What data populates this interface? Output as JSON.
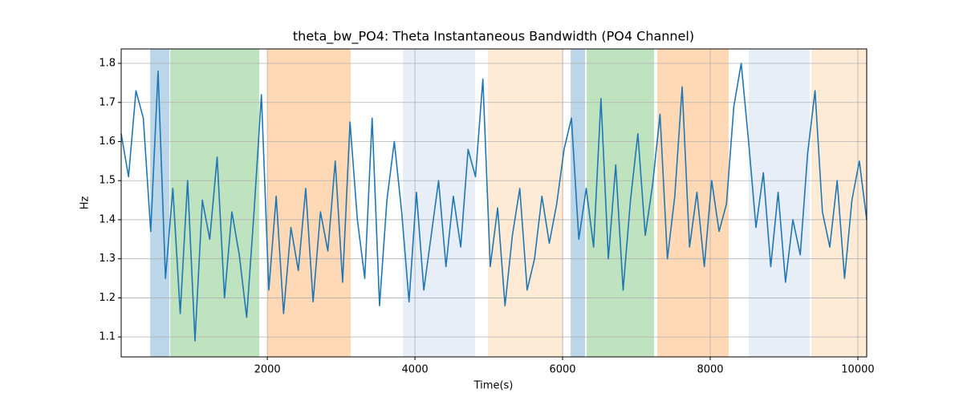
{
  "chart_data": {
    "type": "line",
    "title": "theta_bw_PO4: Theta Instantaneous Bandwidth (PO4 Channel)",
    "x_label": "Time(s)",
    "y_label": "Hz",
    "xlim": [
      20,
      10120
    ],
    "ylim": [
      1.049,
      1.837
    ],
    "xticks": [
      2000,
      4000,
      6000,
      8000,
      10000
    ],
    "yticks": [
      1.1,
      1.2,
      1.3,
      1.4,
      1.5,
      1.6,
      1.7,
      1.8
    ],
    "grid": true,
    "spans": [
      {
        "start": 413,
        "end": 674,
        "color": "#1f77b4"
      },
      {
        "start": 685,
        "end": 1891,
        "color": "#2ca02c"
      },
      {
        "start": 2000,
        "end": 3130,
        "color": "#ff7f0e"
      },
      {
        "start": 3837,
        "end": 4815,
        "color": "#aec7e8"
      },
      {
        "start": 4989,
        "end": 6011,
        "color": "#ffbb78"
      },
      {
        "start": 6109,
        "end": 6304,
        "color": "#1f77b4"
      },
      {
        "start": 6326,
        "end": 7239,
        "color": "#2ca02c"
      },
      {
        "start": 7283,
        "end": 8250,
        "color": "#ff7f0e"
      },
      {
        "start": 8522,
        "end": 9348,
        "color": "#aec7e8"
      },
      {
        "start": 9370,
        "end": 10120,
        "color": "#ffbb78"
      }
    ],
    "x": [
      20,
      120,
      220,
      320,
      420,
      520,
      620,
      720,
      820,
      920,
      1020,
      1120,
      1220,
      1320,
      1420,
      1520,
      1620,
      1720,
      1820,
      1920,
      2020,
      2120,
      2220,
      2320,
      2420,
      2520,
      2620,
      2720,
      2820,
      2920,
      3020,
      3120,
      3220,
      3320,
      3420,
      3520,
      3620,
      3720,
      3820,
      3920,
      4020,
      4120,
      4220,
      4320,
      4420,
      4520,
      4620,
      4720,
      4820,
      4920,
      5020,
      5120,
      5220,
      5320,
      5420,
      5520,
      5620,
      5720,
      5820,
      5920,
      6020,
      6120,
      6220,
      6320,
      6420,
      6520,
      6620,
      6720,
      6820,
      6920,
      7020,
      7120,
      7220,
      7320,
      7420,
      7520,
      7620,
      7720,
      7820,
      7920,
      8020,
      8120,
      8220,
      8320,
      8420,
      8520,
      8620,
      8720,
      8820,
      8920,
      9020,
      9120,
      9220,
      9320,
      9420,
      9520,
      9620,
      9720,
      9820,
      9920,
      10020,
      10120
    ],
    "series": [
      {
        "color": "#1f77b4",
        "values": [
          1.62,
          1.51,
          1.73,
          1.66,
          1.37,
          1.78,
          1.25,
          1.48,
          1.16,
          1.5,
          1.09,
          1.45,
          1.35,
          1.56,
          1.2,
          1.42,
          1.31,
          1.15,
          1.42,
          1.72,
          1.22,
          1.46,
          1.16,
          1.38,
          1.27,
          1.48,
          1.19,
          1.42,
          1.32,
          1.55,
          1.24,
          1.65,
          1.4,
          1.25,
          1.66,
          1.18,
          1.45,
          1.6,
          1.42,
          1.19,
          1.47,
          1.22,
          1.36,
          1.5,
          1.28,
          1.46,
          1.33,
          1.58,
          1.51,
          1.76,
          1.28,
          1.43,
          1.18,
          1.36,
          1.48,
          1.22,
          1.3,
          1.46,
          1.34,
          1.44,
          1.58,
          1.66,
          1.35,
          1.48,
          1.33,
          1.71,
          1.3,
          1.54,
          1.22,
          1.45,
          1.62,
          1.36,
          1.49,
          1.67,
          1.3,
          1.46,
          1.74,
          1.33,
          1.47,
          1.28,
          1.5,
          1.37,
          1.44,
          1.69,
          1.8,
          1.6,
          1.38,
          1.52,
          1.28,
          1.47,
          1.24,
          1.4,
          1.31,
          1.57,
          1.73,
          1.42,
          1.33,
          1.5,
          1.25,
          1.45,
          1.55,
          1.4
        ]
      }
    ]
  }
}
